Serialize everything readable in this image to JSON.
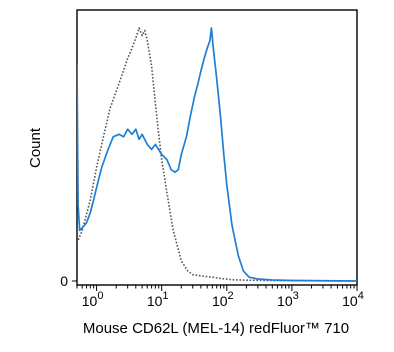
{
  "chart_data": {
    "type": "line",
    "xlabel": "Mouse CD62L (MEL-14) redFluor™ 710",
    "ylabel": "Count",
    "x_scale": "log",
    "xlim": [
      0.5,
      10000
    ],
    "ylim": [
      0,
      100
    ],
    "x_ticks": [
      {
        "value": 1,
        "base": "10",
        "exp": "0"
      },
      {
        "value": 10,
        "base": "10",
        "exp": "1"
      },
      {
        "value": 100,
        "base": "10",
        "exp": "2"
      },
      {
        "value": 1000,
        "base": "10",
        "exp": "3"
      },
      {
        "value": 10000,
        "base": "10",
        "exp": "4"
      }
    ],
    "y_ticks": [
      {
        "value": 0,
        "label": "0"
      }
    ],
    "grid": false,
    "series": [
      {
        "style": "dotted",
        "color": "#555555",
        "points": [
          [
            0.5,
            15
          ],
          [
            0.6,
            20
          ],
          [
            0.8,
            32
          ],
          [
            1.0,
            45
          ],
          [
            1.3,
            58
          ],
          [
            1.6,
            68
          ],
          [
            2.0,
            75
          ],
          [
            2.5,
            82
          ],
          [
            3.0,
            88
          ],
          [
            3.5,
            92
          ],
          [
            4.0,
            96
          ],
          [
            4.5,
            100
          ],
          [
            5.0,
            97
          ],
          [
            5.5,
            99
          ],
          [
            6.0,
            95
          ],
          [
            7.0,
            85
          ],
          [
            8.0,
            70
          ],
          [
            9.0,
            58
          ],
          [
            10,
            48
          ],
          [
            12,
            35
          ],
          [
            15,
            20
          ],
          [
            20,
            8
          ],
          [
            25,
            4
          ],
          [
            30,
            2.5
          ],
          [
            40,
            2
          ],
          [
            60,
            1.5
          ],
          [
            80,
            1
          ],
          [
            120,
            0.5
          ],
          [
            200,
            0.3
          ],
          [
            500,
            0.2
          ],
          [
            10000,
            0
          ]
        ]
      },
      {
        "style": "solid",
        "color": "#1e7fd4",
        "points": [
          [
            0.5,
            86
          ],
          [
            0.52,
            30
          ],
          [
            0.55,
            20
          ],
          [
            0.6,
            21
          ],
          [
            0.7,
            23
          ],
          [
            0.8,
            27
          ],
          [
            0.9,
            32
          ],
          [
            1.0,
            37
          ],
          [
            1.2,
            45
          ],
          [
            1.5,
            52
          ],
          [
            1.8,
            57
          ],
          [
            2.2,
            58
          ],
          [
            2.6,
            57
          ],
          [
            3.0,
            60
          ],
          [
            3.5,
            58
          ],
          [
            4.0,
            60
          ],
          [
            4.5,
            56
          ],
          [
            5.0,
            58
          ],
          [
            6.0,
            54
          ],
          [
            7.0,
            52
          ],
          [
            8.0,
            54
          ],
          [
            10,
            50
          ],
          [
            12,
            48
          ],
          [
            14,
            44
          ],
          [
            16,
            43
          ],
          [
            18,
            44
          ],
          [
            20,
            50
          ],
          [
            24,
            57
          ],
          [
            28,
            66
          ],
          [
            32,
            73
          ],
          [
            36,
            78
          ],
          [
            40,
            83
          ],
          [
            45,
            88
          ],
          [
            50,
            92
          ],
          [
            55,
            95
          ],
          [
            58,
            100
          ],
          [
            62,
            92
          ],
          [
            70,
            80
          ],
          [
            80,
            65
          ],
          [
            90,
            50
          ],
          [
            100,
            38
          ],
          [
            120,
            22
          ],
          [
            150,
            10
          ],
          [
            180,
            4
          ],
          [
            220,
            1.5
          ],
          [
            300,
            0.8
          ],
          [
            500,
            0.4
          ],
          [
            1000,
            0.2
          ],
          [
            10000,
            0
          ]
        ]
      }
    ]
  }
}
